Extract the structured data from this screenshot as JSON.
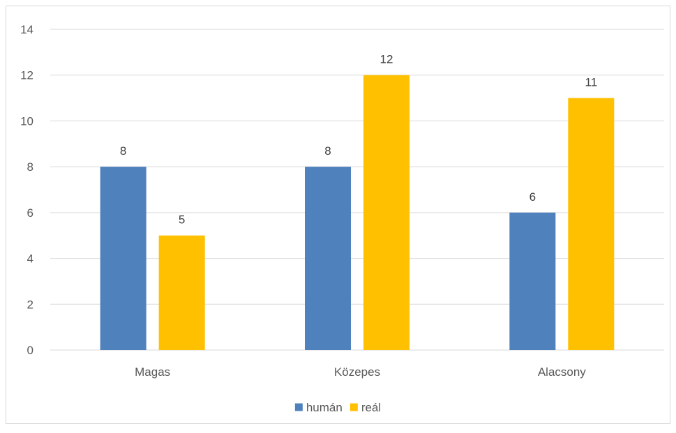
{
  "chart_data": {
    "type": "bar",
    "categories": [
      "Magas",
      "Közepes",
      "Alacsony"
    ],
    "series": [
      {
        "name": "humán",
        "values": [
          8,
          8,
          6
        ],
        "color": "#4F81BD"
      },
      {
        "name": "reál",
        "values": [
          5,
          12,
          11
        ],
        "color": "#FFC000"
      }
    ],
    "ylim": [
      0,
      14
    ],
    "yticks": [
      0,
      2,
      4,
      6,
      8,
      10,
      12,
      14
    ],
    "grid": true,
    "data_labels": true,
    "legend_position": "bottom",
    "colors": {
      "gridline": "#D9D9D9",
      "axis_text": "#595959",
      "label_text": "#404040",
      "border": "#D9D9D9"
    }
  }
}
